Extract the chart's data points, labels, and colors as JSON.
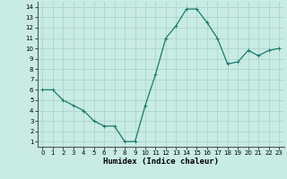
{
  "x": [
    0,
    1,
    2,
    3,
    4,
    5,
    6,
    7,
    8,
    9,
    10,
    11,
    12,
    13,
    14,
    15,
    16,
    17,
    18,
    19,
    20,
    21,
    22,
    23
  ],
  "y": [
    6,
    6,
    5,
    4.5,
    4,
    3,
    2.5,
    2.5,
    1,
    1,
    4.5,
    7.5,
    11,
    12.2,
    13.8,
    13.8,
    12.5,
    11,
    8.5,
    8.7,
    9.8,
    9.3,
    9.8,
    10
  ],
  "line_color": "#1a7a6e",
  "marker": "+",
  "marker_size": 3,
  "bg_color": "#c8ebe3",
  "grid_color": "#a8d0c8",
  "xlabel": "Humidex (Indice chaleur)",
  "xlim": [
    -0.5,
    23.5
  ],
  "ylim": [
    0.5,
    14.5
  ],
  "yticks": [
    1,
    2,
    3,
    4,
    5,
    6,
    7,
    8,
    9,
    10,
    11,
    12,
    13,
    14
  ],
  "xticks": [
    0,
    1,
    2,
    3,
    4,
    5,
    6,
    7,
    8,
    9,
    10,
    11,
    12,
    13,
    14,
    15,
    16,
    17,
    18,
    19,
    20,
    21,
    22,
    23
  ],
  "tick_fontsize": 5,
  "xlabel_fontsize": 6.5,
  "line_width": 0.9
}
